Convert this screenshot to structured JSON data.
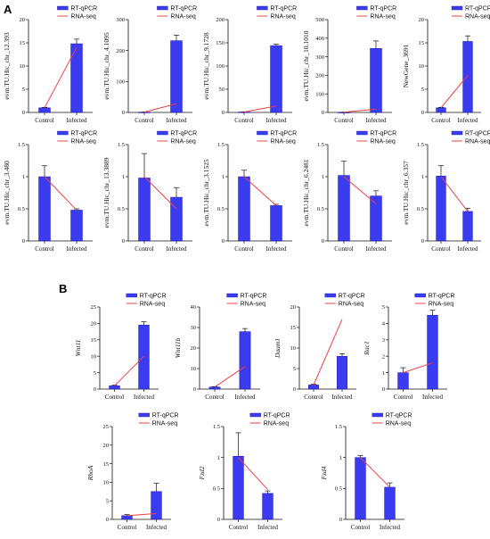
{
  "figure": {
    "panel_labels": [
      "A",
      "B"
    ],
    "legend": {
      "bar_label": "RT-qPCR",
      "line_label": "RNA-seq"
    },
    "colors": {
      "bar": "#3b3bf0",
      "bar_edge": "#1a1ab0",
      "line": "#ee4040",
      "axis": "#111111"
    }
  },
  "chart_data": [
    {
      "type": "bar",
      "panel": "A",
      "ylabel": "evm.TU.Hic_chr_12.393",
      "italic": false,
      "categories": [
        "Control",
        "Infected"
      ],
      "ylim": [
        0,
        20
      ],
      "yticks": [
        0,
        5,
        10,
        15,
        20
      ],
      "series": [
        {
          "name": "RT-qPCR",
          "values": [
            1.0,
            14.8
          ],
          "errors": [
            0.1,
            1.0
          ]
        },
        {
          "name": "RNA-seq",
          "values": [
            1.0,
            14.0
          ]
        }
      ]
    },
    {
      "type": "bar",
      "panel": "A",
      "ylabel": "evm.TU.Hic_chr_4.1095",
      "italic": false,
      "categories": [
        "Control",
        "Infected"
      ],
      "ylim": [
        0,
        300
      ],
      "yticks": [
        0,
        100,
        200,
        300
      ],
      "series": [
        {
          "name": "RT-qPCR",
          "values": [
            1.0,
            232
          ],
          "errors": [
            0.3,
            18
          ]
        },
        {
          "name": "RNA-seq",
          "values": [
            1.0,
            28
          ]
        }
      ]
    },
    {
      "type": "bar",
      "panel": "A",
      "ylabel": "evm.TU.Hic_chr_9.1728",
      "italic": false,
      "categories": [
        "Control",
        "Infected"
      ],
      "ylim": [
        0,
        200
      ],
      "yticks": [
        0,
        50,
        100,
        150,
        200
      ],
      "series": [
        {
          "name": "RT-qPCR",
          "values": [
            1.0,
            144
          ],
          "errors": [
            0.3,
            3
          ]
        },
        {
          "name": "RNA-seq",
          "values": [
            1.0,
            14
          ]
        }
      ]
    },
    {
      "type": "bar",
      "panel": "A",
      "ylabel": "evm.TU.Hic_chr_10.1010",
      "italic": false,
      "categories": [
        "Control",
        "Infected"
      ],
      "ylim": [
        0,
        500
      ],
      "yticks": [
        0,
        100,
        200,
        300,
        400,
        500
      ],
      "series": [
        {
          "name": "RT-qPCR",
          "values": [
            1.0,
            345
          ],
          "errors": [
            0.3,
            40
          ]
        },
        {
          "name": "RNA-seq",
          "values": [
            1.0,
            18
          ]
        }
      ]
    },
    {
      "type": "bar",
      "panel": "A",
      "ylabel": "NewGene_3691",
      "italic": false,
      "categories": [
        "Control",
        "Infected"
      ],
      "ylim": [
        0,
        20
      ],
      "yticks": [
        0,
        5,
        10,
        15,
        20
      ],
      "series": [
        {
          "name": "RT-qPCR",
          "values": [
            1.0,
            15.3
          ],
          "errors": [
            0.1,
            1.2
          ]
        },
        {
          "name": "RNA-seq",
          "values": [
            1.0,
            8.0
          ]
        }
      ]
    },
    {
      "type": "bar",
      "panel": "A",
      "ylabel": "evm.TU.Hic_chr_3.480",
      "italic": false,
      "categories": [
        "Control",
        "Infected"
      ],
      "ylim": [
        0,
        1.5
      ],
      "yticks": [
        0,
        0.5,
        1.0,
        1.5
      ],
      "series": [
        {
          "name": "RT-qPCR",
          "values": [
            1.0,
            0.48
          ],
          "errors": [
            0.17,
            0.02
          ]
        },
        {
          "name": "RNA-seq",
          "values": [
            1.0,
            0.48
          ]
        }
      ]
    },
    {
      "type": "bar",
      "panel": "A",
      "ylabel": "evm.TU.Hic_chr_13.3889",
      "italic": false,
      "categories": [
        "Control",
        "Infected"
      ],
      "ylim": [
        0,
        1.5
      ],
      "yticks": [
        0,
        0.5,
        1.0,
        1.5
      ],
      "series": [
        {
          "name": "RT-qPCR",
          "values": [
            0.98,
            0.68
          ],
          "errors": [
            0.38,
            0.15
          ]
        },
        {
          "name": "RNA-seq",
          "values": [
            1.0,
            0.5
          ]
        }
      ]
    },
    {
      "type": "bar",
      "panel": "A",
      "ylabel": "evm.TU.Hic_chr_3.1525",
      "italic": false,
      "categories": [
        "Control",
        "Infected"
      ],
      "ylim": [
        0,
        1.5
      ],
      "yticks": [
        0,
        0.5,
        1.0,
        1.5
      ],
      "series": [
        {
          "name": "RT-qPCR",
          "values": [
            1.0,
            0.55
          ],
          "errors": [
            0.1,
            0.02
          ]
        },
        {
          "name": "RNA-seq",
          "values": [
            1.0,
            0.55
          ]
        }
      ]
    },
    {
      "type": "bar",
      "panel": "A",
      "ylabel": "evm.TU.Hic_chr_6.2481",
      "italic": false,
      "categories": [
        "Control",
        "Infected"
      ],
      "ylim": [
        0,
        1.5
      ],
      "yticks": [
        0,
        0.5,
        1.0,
        1.5
      ],
      "series": [
        {
          "name": "RT-qPCR",
          "values": [
            1.02,
            0.7
          ],
          "errors": [
            0.22,
            0.08
          ]
        },
        {
          "name": "RNA-seq",
          "values": [
            1.0,
            0.58
          ]
        }
      ]
    },
    {
      "type": "bar",
      "panel": "A",
      "ylabel": "evm.TU.Hic_chr_6.357",
      "italic": false,
      "categories": [
        "Control",
        "Infected"
      ],
      "ylim": [
        0,
        1.5
      ],
      "yticks": [
        0,
        0.5,
        1.0,
        1.5
      ],
      "series": [
        {
          "name": "RT-qPCR",
          "values": [
            1.01,
            0.46
          ],
          "errors": [
            0.16,
            0.05
          ]
        },
        {
          "name": "RNA-seq",
          "values": [
            1.0,
            0.46
          ]
        }
      ]
    },
    {
      "type": "bar",
      "panel": "B",
      "ylabel": "Wnt11",
      "italic": true,
      "categories": [
        "Control",
        "Infected"
      ],
      "ylim": [
        0,
        25
      ],
      "yticks": [
        0,
        5,
        10,
        15,
        20,
        25
      ],
      "series": [
        {
          "name": "RT-qPCR",
          "values": [
            1.0,
            19.5
          ],
          "errors": [
            0.2,
            1.0
          ]
        },
        {
          "name": "RNA-seq",
          "values": [
            1.0,
            10.0
          ]
        }
      ]
    },
    {
      "type": "bar",
      "panel": "B",
      "ylabel": "Wnt11b",
      "italic": true,
      "categories": [
        "Control",
        "Infected"
      ],
      "ylim": [
        0,
        40
      ],
      "yticks": [
        0,
        10,
        20,
        30,
        40
      ],
      "series": [
        {
          "name": "RT-qPCR",
          "values": [
            1.0,
            28
          ],
          "errors": [
            0.2,
            1.5
          ]
        },
        {
          "name": "RNA-seq",
          "values": [
            1.0,
            11.0
          ]
        }
      ]
    },
    {
      "type": "bar",
      "panel": "B",
      "ylabel": "Daam1",
      "italic": true,
      "categories": [
        "Control",
        "Infected"
      ],
      "ylim": [
        0,
        20
      ],
      "yticks": [
        0,
        5,
        10,
        15,
        20
      ],
      "series": [
        {
          "name": "RT-qPCR",
          "values": [
            1.0,
            8.0
          ],
          "errors": [
            0.2,
            0.6
          ]
        },
        {
          "name": "RNA-seq",
          "values": [
            1.0,
            17.0
          ]
        }
      ]
    },
    {
      "type": "bar",
      "panel": "B",
      "ylabel": "Rac1",
      "italic": true,
      "categories": [
        "Control",
        "Infected"
      ],
      "ylim": [
        0,
        5
      ],
      "yticks": [
        0,
        1,
        2,
        3,
        4,
        5
      ],
      "series": [
        {
          "name": "RT-qPCR",
          "values": [
            1.0,
            4.5
          ],
          "errors": [
            0.3,
            0.3
          ]
        },
        {
          "name": "RNA-seq",
          "values": [
            1.0,
            1.6
          ]
        }
      ]
    },
    {
      "type": "bar",
      "panel": "B",
      "ylabel": "RhoA",
      "italic": true,
      "categories": [
        "Control",
        "Infected"
      ],
      "ylim": [
        0,
        25
      ],
      "yticks": [
        0,
        5,
        10,
        15,
        20,
        25
      ],
      "series": [
        {
          "name": "RT-qPCR",
          "values": [
            1.0,
            7.5
          ],
          "errors": [
            0.3,
            2.2
          ]
        },
        {
          "name": "RNA-seq",
          "values": [
            1.0,
            1.6
          ]
        }
      ]
    },
    {
      "type": "bar",
      "panel": "B",
      "ylabel": "Fzd2",
      "italic": true,
      "categories": [
        "Control",
        "Infected"
      ],
      "ylim": [
        0,
        1.5
      ],
      "yticks": [
        0,
        0.5,
        1.0,
        1.5
      ],
      "series": [
        {
          "name": "RT-qPCR",
          "values": [
            1.02,
            0.42
          ],
          "errors": [
            0.38,
            0.04
          ]
        },
        {
          "name": "RNA-seq",
          "values": [
            1.0,
            0.48
          ]
        }
      ]
    },
    {
      "type": "bar",
      "panel": "B",
      "ylabel": "Fzd4",
      "italic": true,
      "categories": [
        "Control",
        "Infected"
      ],
      "ylim": [
        0,
        1.5
      ],
      "yticks": [
        0,
        0.5,
        1.0,
        1.5
      ],
      "series": [
        {
          "name": "RT-qPCR",
          "values": [
            1.0,
            0.52
          ],
          "errors": [
            0.03,
            0.07
          ]
        },
        {
          "name": "RNA-seq",
          "values": [
            1.0,
            0.52
          ]
        }
      ]
    }
  ]
}
